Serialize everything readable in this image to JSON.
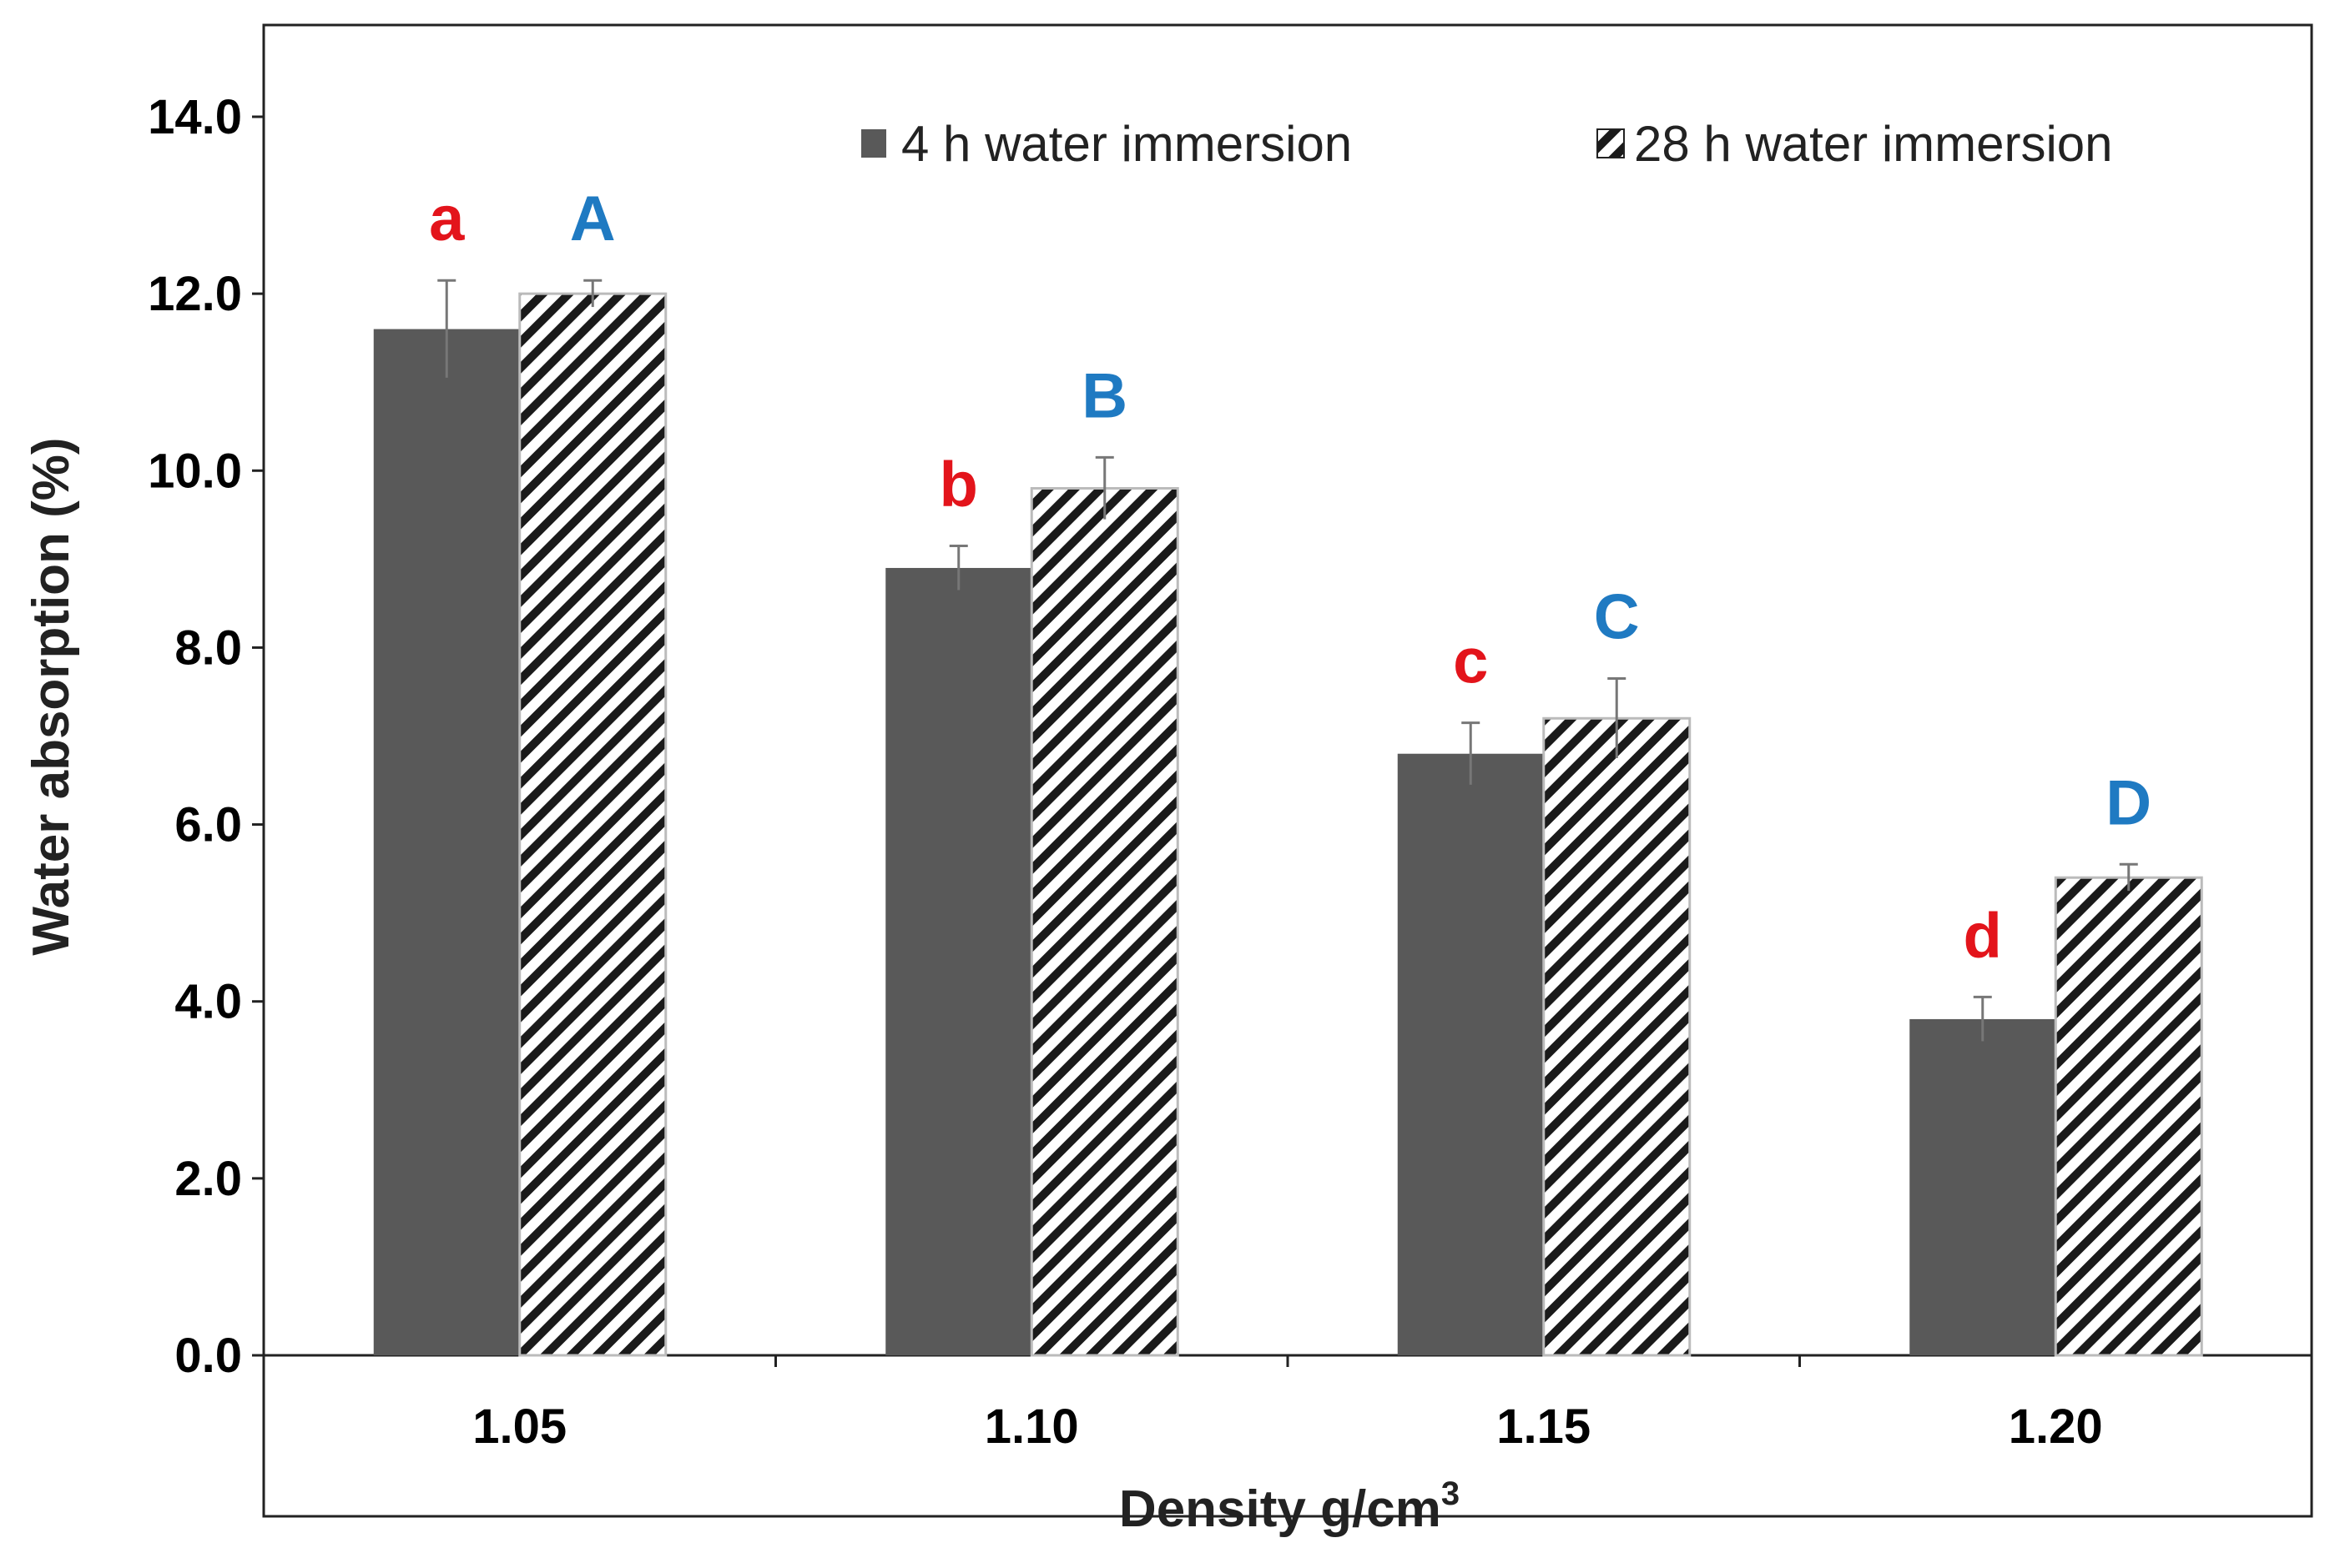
{
  "chart_data": {
    "type": "bar",
    "categories": [
      "1.05",
      "1.10",
      "1.15",
      "1.20"
    ],
    "series": [
      {
        "name": "4 h water immersion",
        "values": [
          11.6,
          8.9,
          6.8,
          3.8
        ],
        "errors": [
          0.55,
          0.25,
          0.35,
          0.25
        ],
        "color": "#595959",
        "pattern": "solid",
        "labels": [
          "a",
          "b",
          "c",
          "d"
        ],
        "label_color": "#e3141b"
      },
      {
        "name": "28 h water immersion",
        "values": [
          12.0,
          9.8,
          7.2,
          5.4
        ],
        "errors": [
          0.15,
          0.35,
          0.45,
          0.15
        ],
        "color": "#1a1a1a",
        "pattern": "diagonal-hatch",
        "labels": [
          "A",
          "B",
          "C",
          "D"
        ],
        "label_color": "#1f7ac2"
      }
    ],
    "xlabel": "Density g/cm",
    "xlabel_superscript": "3",
    "ylabel": "Water absorption (%)",
    "ylim": [
      0,
      14
    ],
    "yticks": [
      "0.0",
      "2.0",
      "4.0",
      "6.0",
      "8.0",
      "10.0",
      "12.0",
      "14.0"
    ],
    "grid": false,
    "legend_position": "top-right",
    "error_bars": true
  }
}
